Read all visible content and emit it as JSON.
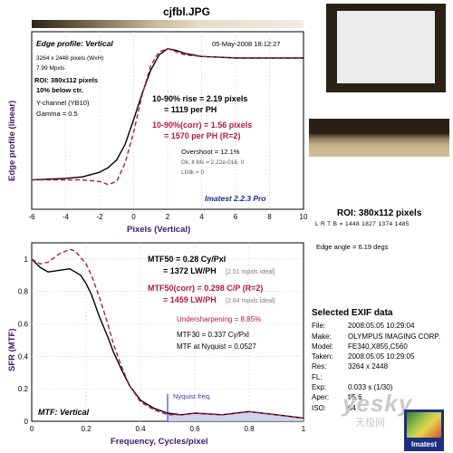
{
  "filename": "cjfbl.JPG",
  "colors": {
    "measured": "#000000",
    "corrected": "#b0184c",
    "accent_text": "#b0184c",
    "ideal_text": "#808080",
    "nyquist_line": "#5656d0",
    "fill": "#c8cce8"
  },
  "top_plot": {
    "title": "Edge profile: Vertical",
    "date": "05-May-2008 18:12:27",
    "size": "3264 x 2448 pixels (WxH)",
    "mpxls": "7.99 Mpxls",
    "roi": "ROI: 380x112 pixels",
    "below": "10% below ctr.",
    "channel": "Y-channel (YB10)",
    "gamma": "Gamma = 0.5",
    "rise": "10-90% rise = 2.19 pixels",
    "rise_ph": "= 1119 per PH",
    "rise_corr": "10-90%(corr) = 1.56 pixels",
    "rise_corr_ph": "= 1570 per PH   (R=2)",
    "overshoot": "Overshoot = 12.1%",
    "dk": "Dk, lt Ms = 2.22e-016, 0",
    "ltdk": "Lt/dk = 0",
    "version": "Imatest 2.2.3 Pro",
    "xlabel": "Pixels (Vertical)",
    "ylabel": "Edge profile (linear)"
  },
  "bottom_plot": {
    "mtf50": "MTF50 = 0.28 Cy/Pxl",
    "mtf50_lw": "= 1372 LW/PH",
    "mtf50_ideal": "[2.51 mpxls ideal]",
    "mtf50corr": "MTF50(corr) = 0.298 C/P  (R=2)",
    "mtf50corr_lw": "= 1459 LW/PH",
    "mtf50corr_ideal": "[2.84 mpxls ideal]",
    "under": "Undersharpening = 8.85%",
    "mtf30": "MTF30 = 0.337 Cy/Pxl",
    "nyq_mtf": "MTF at Nyquist = 0.0527",
    "nyq_label": "Nyquist freq.",
    "corner_label": "MTF: Vertical",
    "xlabel": "Frequency, Cycles/pixel",
    "ylabel": "SFR (MTF)"
  },
  "roi_panel": {
    "title": "ROI: 380x112 pixels",
    "sub": "L R T B = 1448 1827  1374 1485",
    "edge_angle": "Edge angle = 6.19 degs"
  },
  "exif": {
    "title": "Selected EXIF data",
    "rows": [
      {
        "k": "File:",
        "v": "2008:05:05 10:29:04"
      },
      {
        "k": "Make:",
        "v": "OLYMPUS IMAGING CORP."
      },
      {
        "k": "Model:",
        "v": "FE340,X855,C560"
      },
      {
        "k": "Taken:",
        "v": "2008:05:05 10:29:05"
      },
      {
        "k": "Res:",
        "v": "3264 x 2448"
      },
      {
        "k": "FL:",
        "v": ""
      },
      {
        "k": "Exp:",
        "v": "0.033 s  (1/30)"
      },
      {
        "k": "Aper:",
        "v": "f/5.6"
      },
      {
        "k": "ISO:",
        "v": "64"
      }
    ]
  },
  "watermark": {
    "main": "yesky",
    "sub": "天极网",
    "logo_text": "Imatest"
  },
  "chart_data": [
    {
      "type": "line",
      "xlim": [
        -6,
        10
      ],
      "ylim": [
        0,
        1.15
      ],
      "xticks": [
        -6,
        -4,
        -2,
        0,
        2,
        4,
        6,
        8,
        10
      ],
      "xlabel": "Pixels (Vertical)",
      "ylabel": "Edge profile (linear)",
      "series": [
        {
          "x": [
            -6,
            -4,
            -3,
            -2,
            -1.5,
            -1,
            -0.5,
            0,
            0.5,
            1,
            1.5,
            2,
            2.5,
            3,
            4,
            5,
            6,
            8,
            10
          ],
          "y": [
            0.19,
            0.2,
            0.21,
            0.24,
            0.27,
            0.32,
            0.42,
            0.58,
            0.75,
            0.9,
            1.0,
            1.04,
            1.03,
            1.01,
            0.99,
            0.985,
            0.98,
            0.98,
            0.98
          ]
        },
        {
          "x": [
            -6,
            -4,
            -3,
            -2,
            -1.5,
            -1,
            -0.5,
            0,
            0.5,
            1,
            1.5,
            2,
            2.5,
            3,
            4,
            5,
            6,
            8,
            10
          ],
          "y": [
            0.19,
            0.19,
            0.19,
            0.18,
            0.16,
            0.18,
            0.3,
            0.5,
            0.74,
            0.93,
            1.02,
            1.04,
            1.02,
            1.0,
            0.99,
            0.985,
            0.98,
            0.98,
            0.98
          ]
        }
      ]
    },
    {
      "type": "line",
      "xlim": [
        0,
        1
      ],
      "ylim": [
        0,
        1.1
      ],
      "xticks": [
        0,
        0.2,
        0.4,
        0.6,
        0.8,
        1
      ],
      "yticks": [
        0,
        0.2,
        0.4,
        0.6,
        0.8,
        1
      ],
      "xlabel": "Frequency, Cycles/pixel",
      "ylabel": "SFR (MTF)",
      "nyquist": 0.5,
      "series": [
        {
          "x": [
            0,
            0.03,
            0.06,
            0.1,
            0.14,
            0.18,
            0.2,
            0.22,
            0.25,
            0.28,
            0.3,
            0.33,
            0.36,
            0.4,
            0.45,
            0.5,
            0.55,
            0.6,
            0.7,
            0.8,
            0.9,
            1.0
          ],
          "y": [
            1.0,
            0.95,
            0.92,
            0.93,
            0.94,
            0.9,
            0.85,
            0.78,
            0.64,
            0.52,
            0.43,
            0.32,
            0.22,
            0.13,
            0.08,
            0.05,
            0.04,
            0.05,
            0.04,
            0.06,
            0.04,
            0.02
          ]
        },
        {
          "x": [
            0,
            0.03,
            0.06,
            0.1,
            0.14,
            0.16,
            0.2,
            0.22,
            0.25,
            0.28,
            0.3,
            0.33,
            0.36,
            0.4,
            0.45,
            0.5,
            0.55,
            0.6,
            0.7,
            0.8,
            0.9,
            1.0
          ],
          "y": [
            1.0,
            0.97,
            0.98,
            1.03,
            1.06,
            1.05,
            0.97,
            0.9,
            0.76,
            0.6,
            0.48,
            0.34,
            0.22,
            0.12,
            0.07,
            0.04,
            0.04,
            0.05,
            0.04,
            0.06,
            0.04,
            0.02
          ]
        }
      ]
    }
  ]
}
